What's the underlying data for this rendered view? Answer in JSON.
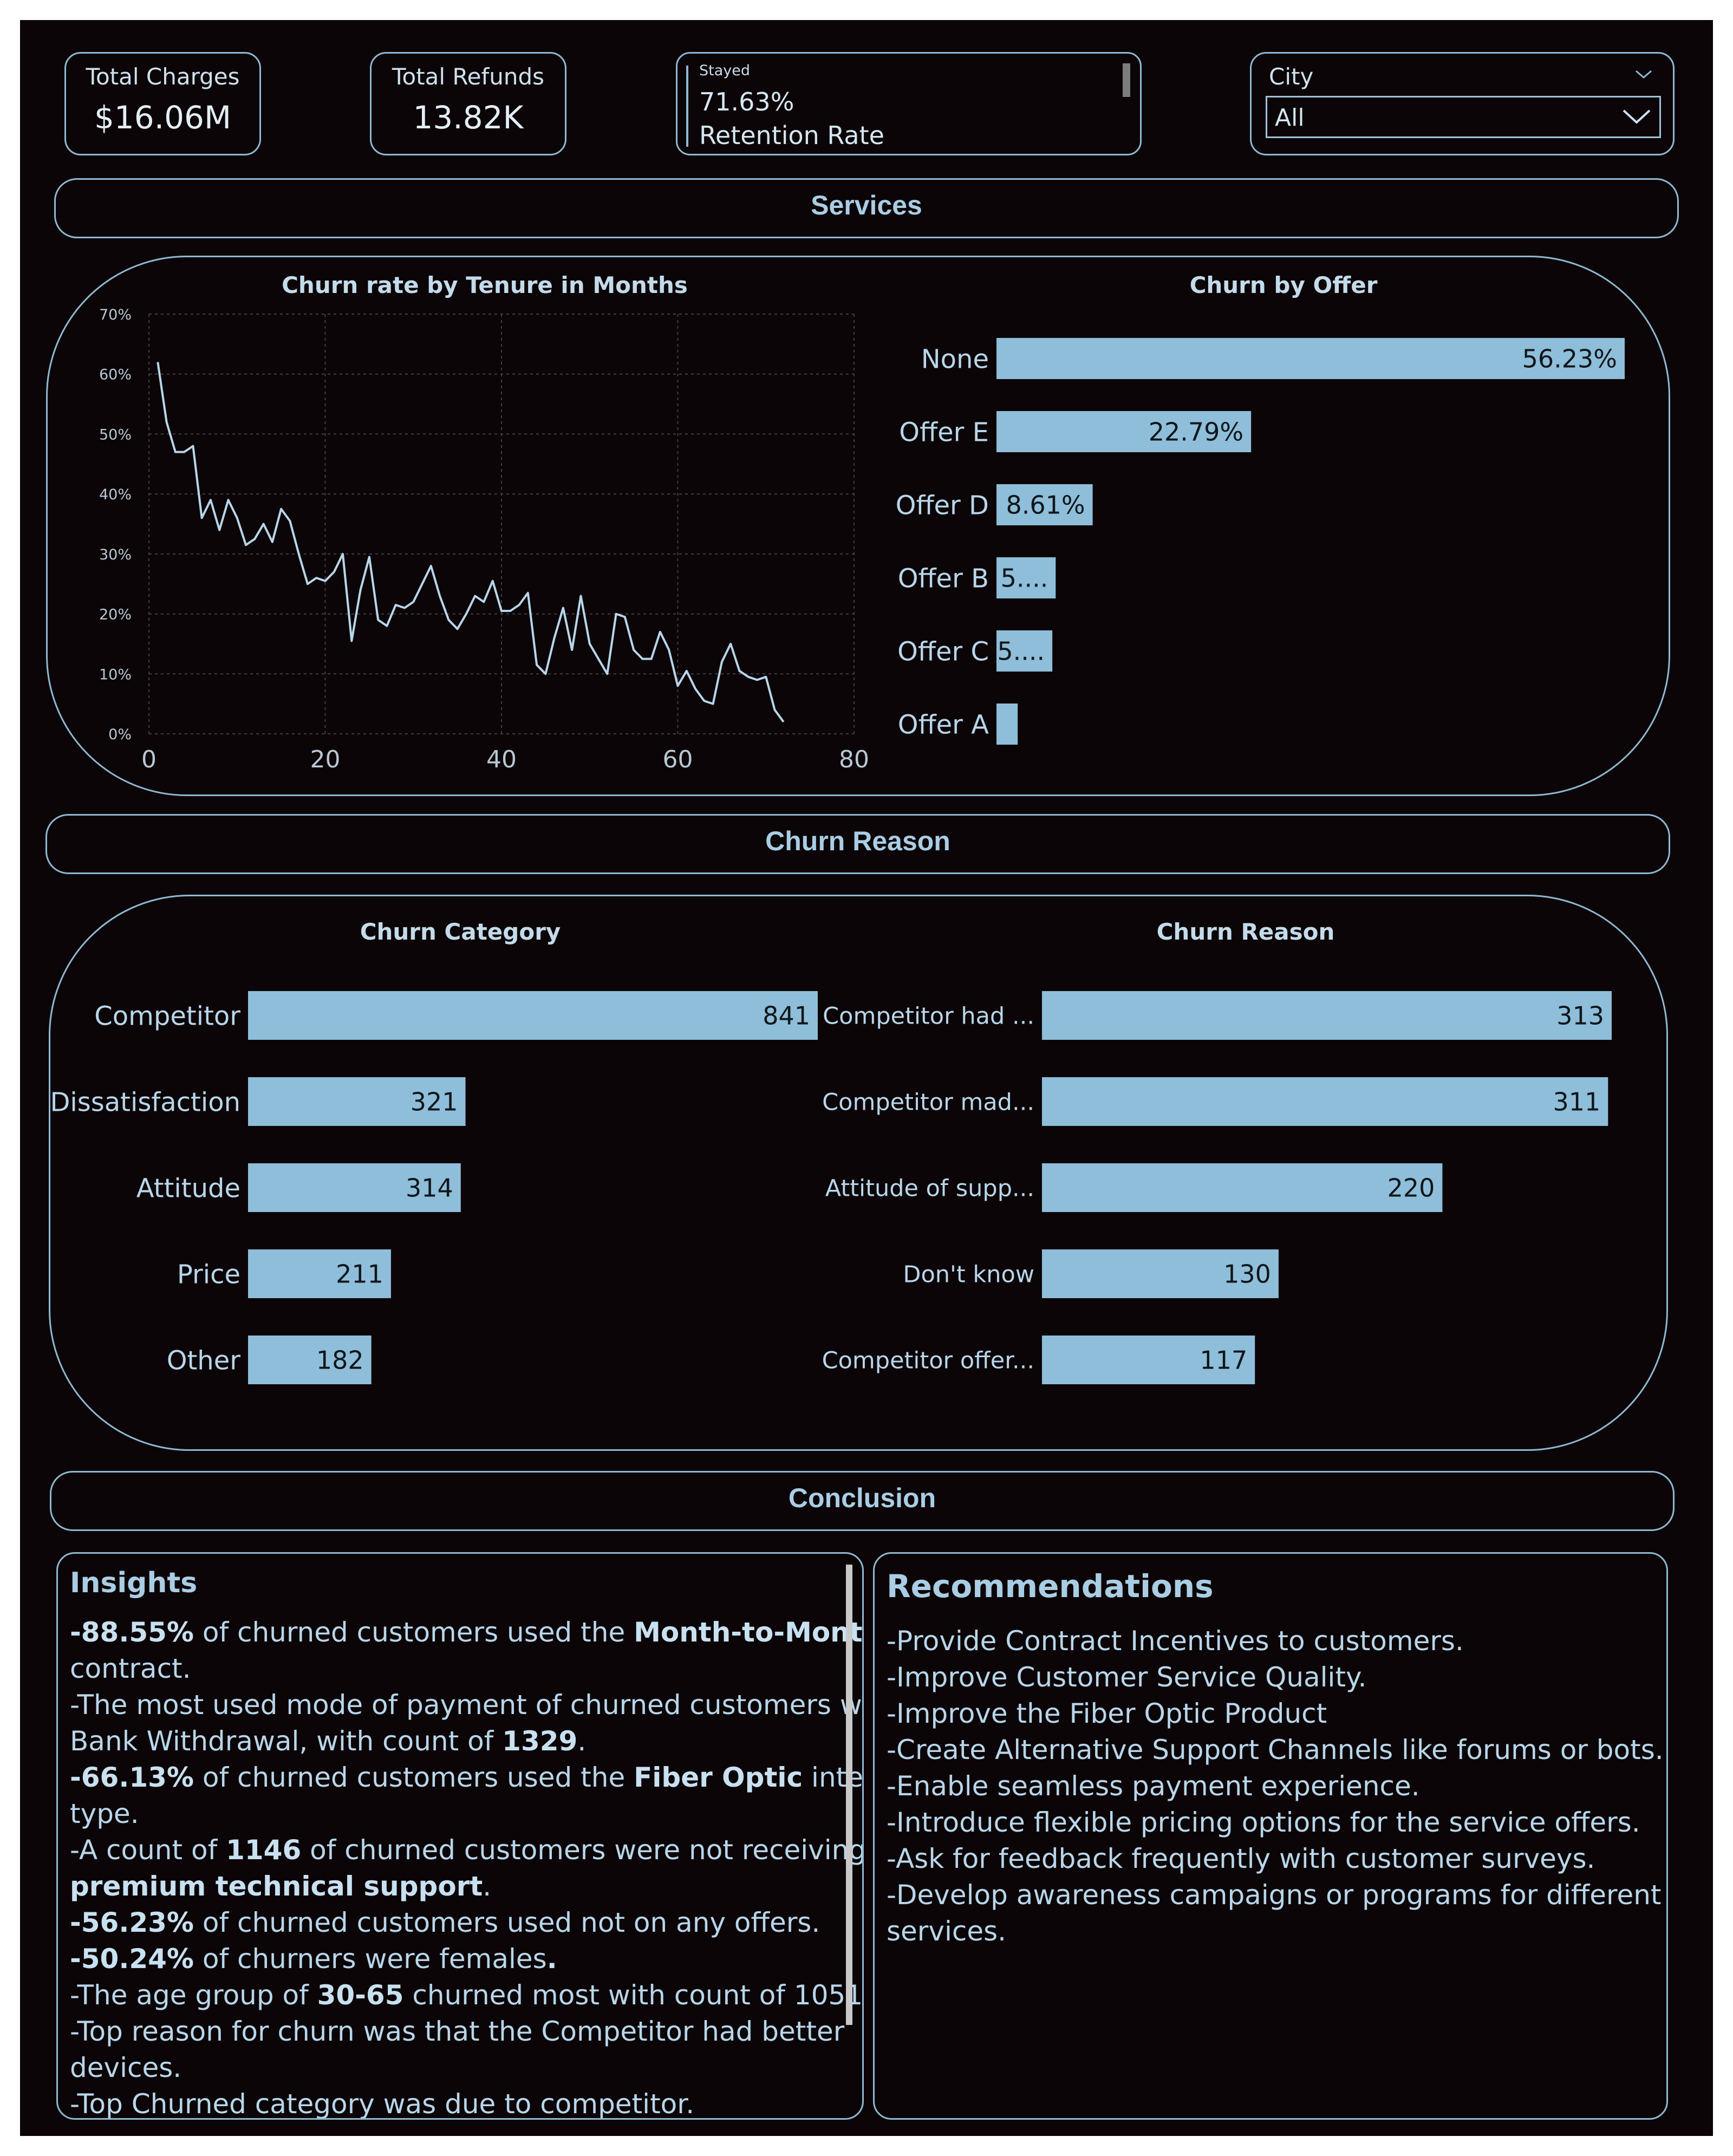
{
  "kpis": {
    "total_charges": {
      "label": "Total Charges",
      "value": "$16.06M"
    },
    "total_refunds": {
      "label": "Total Refunds",
      "value": "13.82K"
    },
    "retention": {
      "small_label": "Stayed",
      "value": "71.63%",
      "label": "Retention Rate"
    }
  },
  "slicer": {
    "title": "City",
    "selected": "All"
  },
  "sections": {
    "services": "Services",
    "churn_reason": "Churn Reason",
    "conclusion": "Conclusion"
  },
  "colors": {
    "bar": "#8ebed9",
    "line": "#b8d6ea",
    "border": "#8fb9d2",
    "background": "#0c0507"
  },
  "tenure_chart": {
    "title": "Churn rate by Tenure in Months",
    "chart_data": {
      "type": "line",
      "title": "Churn rate by Tenure in Months",
      "x": [
        1,
        2,
        3,
        4,
        5,
        6,
        7,
        8,
        9,
        10,
        11,
        12,
        13,
        14,
        15,
        16,
        17,
        18,
        19,
        20,
        21,
        22,
        23,
        24,
        25,
        26,
        27,
        28,
        29,
        30,
        31,
        32,
        33,
        34,
        35,
        36,
        37,
        38,
        39,
        40,
        41,
        42,
        43,
        44,
        45,
        46,
        47,
        48,
        49,
        50,
        51,
        52,
        53,
        54,
        55,
        56,
        57,
        58,
        59,
        60,
        61,
        62,
        63,
        64,
        65,
        66,
        67,
        68,
        69,
        70,
        71,
        72
      ],
      "values": [
        62,
        52,
        47,
        47,
        48,
        36,
        39,
        34,
        39,
        36,
        31.5,
        32.5,
        35,
        32,
        37.5,
        35.5,
        30,
        25,
        26,
        25.5,
        27,
        30,
        15.5,
        24,
        29.5,
        19,
        18,
        21.5,
        21,
        22,
        25,
        28,
        23,
        19,
        17.5,
        20,
        23,
        22,
        25.5,
        20.5,
        20.5,
        21.5,
        23.5,
        11.5,
        10,
        16,
        21,
        14,
        23,
        15,
        12.5,
        10,
        20,
        19.5,
        14,
        12.5,
        12.5,
        17,
        14,
        8,
        10.5,
        7.5,
        5.5,
        5,
        12,
        15,
        10.5,
        9.5,
        9,
        9.5,
        4,
        2
      ],
      "xlim": [
        0,
        80
      ],
      "ylim": [
        0,
        70
      ],
      "x_ticks": [
        "0",
        "20",
        "40",
        "60",
        "80"
      ],
      "y_ticks": [
        "0%",
        "10%",
        "20%",
        "30%",
        "40%",
        "50%",
        "60%",
        "70%"
      ],
      "grid": true
    }
  },
  "offer_chart": {
    "title": "Churn by Offer",
    "chart_data": {
      "type": "bar",
      "orientation": "horizontal",
      "title": "Churn by Offer",
      "categories": [
        "None",
        "Offer E",
        "Offer D",
        "Offer B",
        "Offer C",
        "Offer A"
      ],
      "values": [
        56.23,
        22.79,
        8.61,
        5.3,
        5.0,
        1.9
      ],
      "data_labels": [
        "56.23%",
        "22.79%",
        "8.61%",
        "5....",
        "5....",
        ""
      ],
      "xlim": [
        0,
        56.23
      ]
    }
  },
  "category_chart": {
    "title": "Churn Category",
    "chart_data": {
      "type": "bar",
      "orientation": "horizontal",
      "title": "Churn Category",
      "categories": [
        "Competitor",
        "Dissatisfaction",
        "Attitude",
        "Price",
        "Other"
      ],
      "values": [
        841,
        321,
        314,
        211,
        182
      ],
      "data_labels": [
        "841",
        "321",
        "314",
        "211",
        "182"
      ],
      "xlim": [
        0,
        841
      ]
    }
  },
  "reason_chart": {
    "title": "Churn Reason",
    "chart_data": {
      "type": "bar",
      "orientation": "horizontal",
      "title": "Churn Reason",
      "categories": [
        "Competitor had ...",
        "Competitor mad...",
        "Attitude of supp...",
        "Don't know",
        "Competitor offer..."
      ],
      "values": [
        313,
        311,
        220,
        130,
        117
      ],
      "data_labels": [
        "313",
        "311",
        "220",
        "130",
        "117"
      ],
      "xlim": [
        0,
        313
      ]
    }
  },
  "insights": {
    "title": "Insights",
    "lines": [
      [
        {
          "b": "-88.55%"
        },
        {
          "t": " of churned customers used the "
        },
        {
          "b": "Month-to-Month"
        }
      ],
      [
        {
          "t": "contract."
        }
      ],
      [
        {
          "t": "-The most used mode of payment of churned customers was"
        }
      ],
      [
        {
          "t": "Bank Withdrawal, with count of "
        },
        {
          "b": "1329"
        },
        {
          "t": "."
        }
      ],
      [
        {
          "b": "-66.13%"
        },
        {
          "t": " of churned customers used the "
        },
        {
          "b": "Fiber Optic"
        },
        {
          "t": " internet"
        }
      ],
      [
        {
          "t": "type."
        }
      ],
      [
        {
          "t": "-A count of "
        },
        {
          "b": "1146"
        },
        {
          "t": " of churned customers were not receiving"
        }
      ],
      [
        {
          "b": "premium technical support"
        },
        {
          "t": "."
        }
      ],
      [
        {
          "b": "-56.23%"
        },
        {
          "t": " of churned customers used not on any offers."
        }
      ],
      [
        {
          "b": "-50.24%"
        },
        {
          "t": " of churners were females"
        },
        {
          "b": "."
        }
      ],
      [
        {
          "t": "-The  age group of "
        },
        {
          "b": "30-65"
        },
        {
          "t": " churned most with count of 1051."
        }
      ],
      [
        {
          "t": "-Top reason for churn was that the Competitor had better"
        }
      ],
      [
        {
          "t": "devices."
        }
      ],
      [
        {
          "t": "-Top Churned category was due to competitor."
        }
      ]
    ]
  },
  "recommendations": {
    "title": "Recommendations",
    "lines": [
      "-Provide Contract Incentives to customers.",
      "-Improve Customer Service Quality.",
      "-Improve the Fiber Optic Product",
      "-Create Alternative Support Channels like forums or bots.",
      "-Enable seamless payment experience.",
      "-Introduce flexible pricing options for the service offers.",
      "-Ask for feedback frequently with customer surveys.",
      "-Develop awareness campaigns or programs for different",
      "services."
    ]
  }
}
